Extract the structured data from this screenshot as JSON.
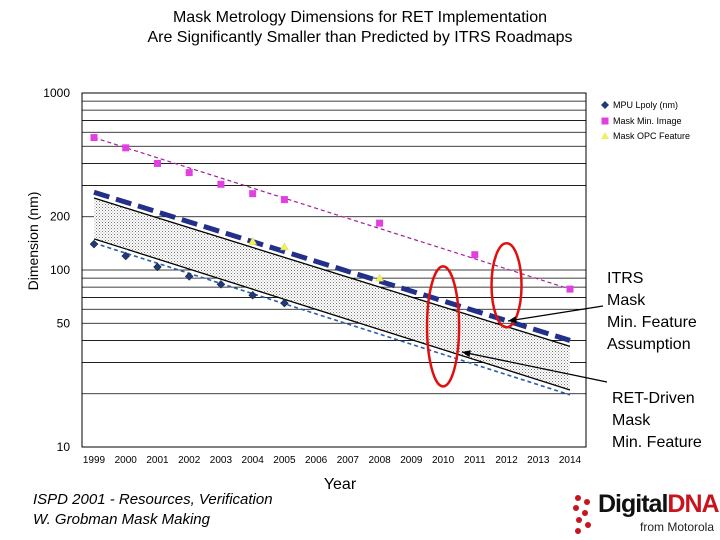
{
  "title_line1": "Mask Metrology Dimensions for RET Implementation",
  "title_line2": "Are Significantly Smaller than Predicted by ITRS Roadmaps",
  "colors": {
    "mpu": "#1f3a7a",
    "mask_min": "#e040e0",
    "opc": "#f0f060",
    "red": "#e01010"
  },
  "chart_data": {
    "type": "scatter",
    "yscale": "log",
    "ylim": [
      10,
      1000
    ],
    "xlim": [
      1999,
      2014
    ],
    "xlabel": "Year",
    "ylabel": "Dimension (nm)",
    "x_ticks": [
      "1999",
      "2000",
      "2001",
      "2002",
      "2003",
      "2004",
      "2005",
      "2006",
      "2007",
      "2008",
      "2009",
      "2010",
      "2011",
      "2012",
      "2013",
      "2014"
    ],
    "y_ticks": [
      {
        "v": 1000,
        "label": "1000"
      },
      {
        "v": 200,
        "label": "200"
      },
      {
        "v": 100,
        "label": "100"
      },
      {
        "v": 50,
        "label": "50"
      },
      {
        "v": 10,
        "label": "10"
      }
    ],
    "legend": [
      "MPU Lpoly (nm)",
      "Mask Min. Image",
      "Mask OPC Feature"
    ],
    "series": [
      {
        "name": "MPU Lpoly (nm)",
        "marker": "diamond",
        "x": [
          1999,
          2000,
          2001,
          2002,
          2003,
          2004,
          2005
        ],
        "y": [
          140,
          120,
          104,
          92,
          83,
          72,
          65
        ]
      },
      {
        "name": "Mask Min. Image",
        "marker": "square",
        "x": [
          1999,
          2000,
          2001,
          2002,
          2003,
          2004,
          2005,
          2008,
          2011,
          2014
        ],
        "y": [
          560,
          490,
          400,
          355,
          305,
          270,
          250,
          184,
          122,
          78
        ]
      },
      {
        "name": "Mask OPC Feature",
        "marker": "triangle",
        "x": [
          2004,
          2005,
          2008
        ],
        "y": [
          145,
          135,
          90
        ]
      }
    ],
    "trend_lines": [
      {
        "name": "Mask Min. Image trend",
        "from": [
          1999,
          560
        ],
        "to": [
          2014,
          78
        ]
      },
      {
        "name": "ITRS mask min feature",
        "from": [
          1999,
          275
        ],
        "to": [
          2014,
          40
        ]
      },
      {
        "name": "Band upper",
        "from": [
          1999,
          255
        ],
        "to": [
          2014,
          37
        ]
      },
      {
        "name": "Band lower",
        "from": [
          1999,
          150
        ],
        "to": [
          2014,
          21
        ]
      },
      {
        "name": "RET-driven mask min feature",
        "from": [
          1999,
          142
        ],
        "to": [
          2014,
          19.7
        ]
      }
    ]
  },
  "annotations": {
    "itrs": [
      "ITRS",
      "Mask",
      "Min. Feature",
      "Assumption"
    ],
    "ret": [
      "RET-Driven",
      "Mask",
      "Min. Feature"
    ]
  },
  "footer": {
    "line1": "ISPD 2001 - Resources, Verification",
    "line2": "W. Grobman     Mask Making"
  },
  "brand": {
    "name_a": "Digital",
    "name_b": "DNA",
    "sub": "from Motorola"
  }
}
